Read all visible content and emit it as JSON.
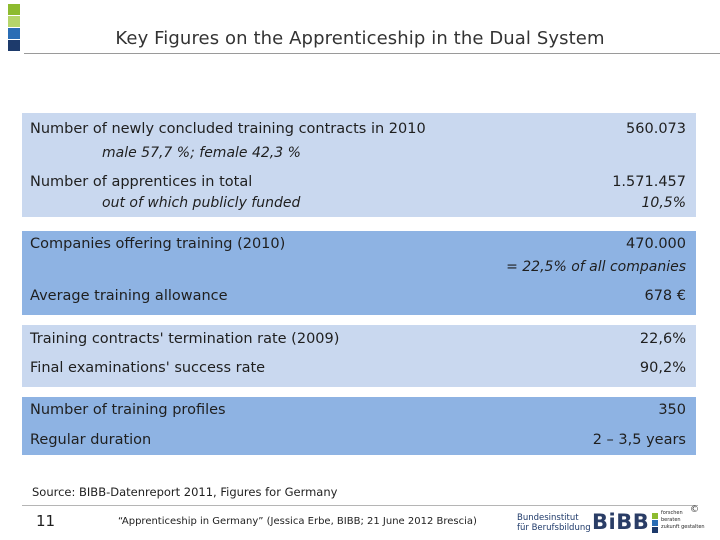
{
  "header": {
    "title": "Key Figures on the Apprenticeship in the Dual System"
  },
  "rows": {
    "contracts": {
      "label": "Number of newly concluded training contracts in 2010",
      "sub": "male 57,7 %;  female 42,3 %",
      "value": "560.073"
    },
    "apprentices": {
      "label": "Number of apprentices in total",
      "sub": "out of which publicly funded",
      "value": "1.571.457",
      "sub_value": "10,5%"
    },
    "companies": {
      "label": "Companies offering training (2010)",
      "value": "470.000",
      "sub_value": "= 22,5% of all companies"
    },
    "allowance": {
      "label": "Average training allowance",
      "value": "678 €"
    },
    "termination": {
      "label": "Training contracts' termination rate (2009)",
      "value": "22,6%"
    },
    "exams": {
      "label": "Final examinations' success rate",
      "value": "90,2%"
    },
    "profiles": {
      "label": "Number of training profiles",
      "value": "350"
    },
    "duration": {
      "label": "Regular duration",
      "value": "2 – 3,5 years"
    }
  },
  "source": "Source: BIBB-Datenreport 2011, Figures for Germany",
  "footer": {
    "page_number": "11",
    "text": "“Apprenticeship in Germany” (Jessica Erbe, BIBB; 21 June 2012 Brescia)",
    "org_name_line1": "Bundesinstitut",
    "org_name_line2": "für Berufsbildung",
    "logo_text": "BiBB",
    "logo_sub_line1": "forschen",
    "logo_sub_line2": "beraten",
    "logo_sub_line3": "zukunft gestalten",
    "copyright": "©"
  },
  "colors": {
    "block_light": "#c9d8ef",
    "block_dark": "#8eb3e3",
    "logo_green": "#8dbb2f",
    "logo_blue": "#2a6db5",
    "logo_navy": "#1d3a6b"
  }
}
